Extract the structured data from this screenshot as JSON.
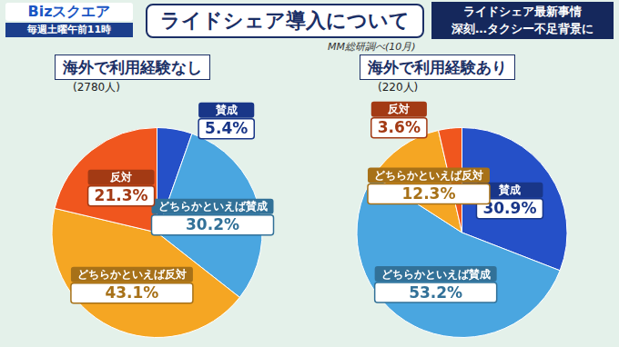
{
  "header": {
    "logo": "Bizスクエア",
    "schedule": "毎週土曜午前11時",
    "title": "ライドシェア導入について",
    "topic": [
      "ライドシェア最新事情",
      "深刻…タクシー不足背景に"
    ],
    "source": "MM総研調べ(10月)"
  },
  "chart_data": [
    {
      "type": "pie",
      "title": "海外で利用経験なし",
      "subtitle": "(2780人)",
      "categories": [
        "賛成",
        "どちらかといえば賛成",
        "どちらかといえば反対",
        "反対"
      ],
      "values": [
        5.4,
        30.2,
        43.1,
        21.3
      ],
      "value_labels": [
        "5.4%",
        "30.2%",
        "43.1%",
        "21.3%"
      ],
      "colors": [
        "#2550c8",
        "#4aa6e0",
        "#f5a623",
        "#f0561e"
      ],
      "data_labels": true
    },
    {
      "type": "pie",
      "title": "海外で利用経験あり",
      "subtitle": "(220人)",
      "categories": [
        "賛成",
        "どちらかといえば賛成",
        "どちらかといえば反対",
        "反対"
      ],
      "values": [
        30.9,
        53.2,
        12.3,
        3.6
      ],
      "value_labels": [
        "30.9%",
        "53.2%",
        "12.3%",
        "3.6%"
      ],
      "colors": [
        "#2550c8",
        "#4aa6e0",
        "#f5a623",
        "#f0561e"
      ],
      "data_labels": true
    }
  ]
}
